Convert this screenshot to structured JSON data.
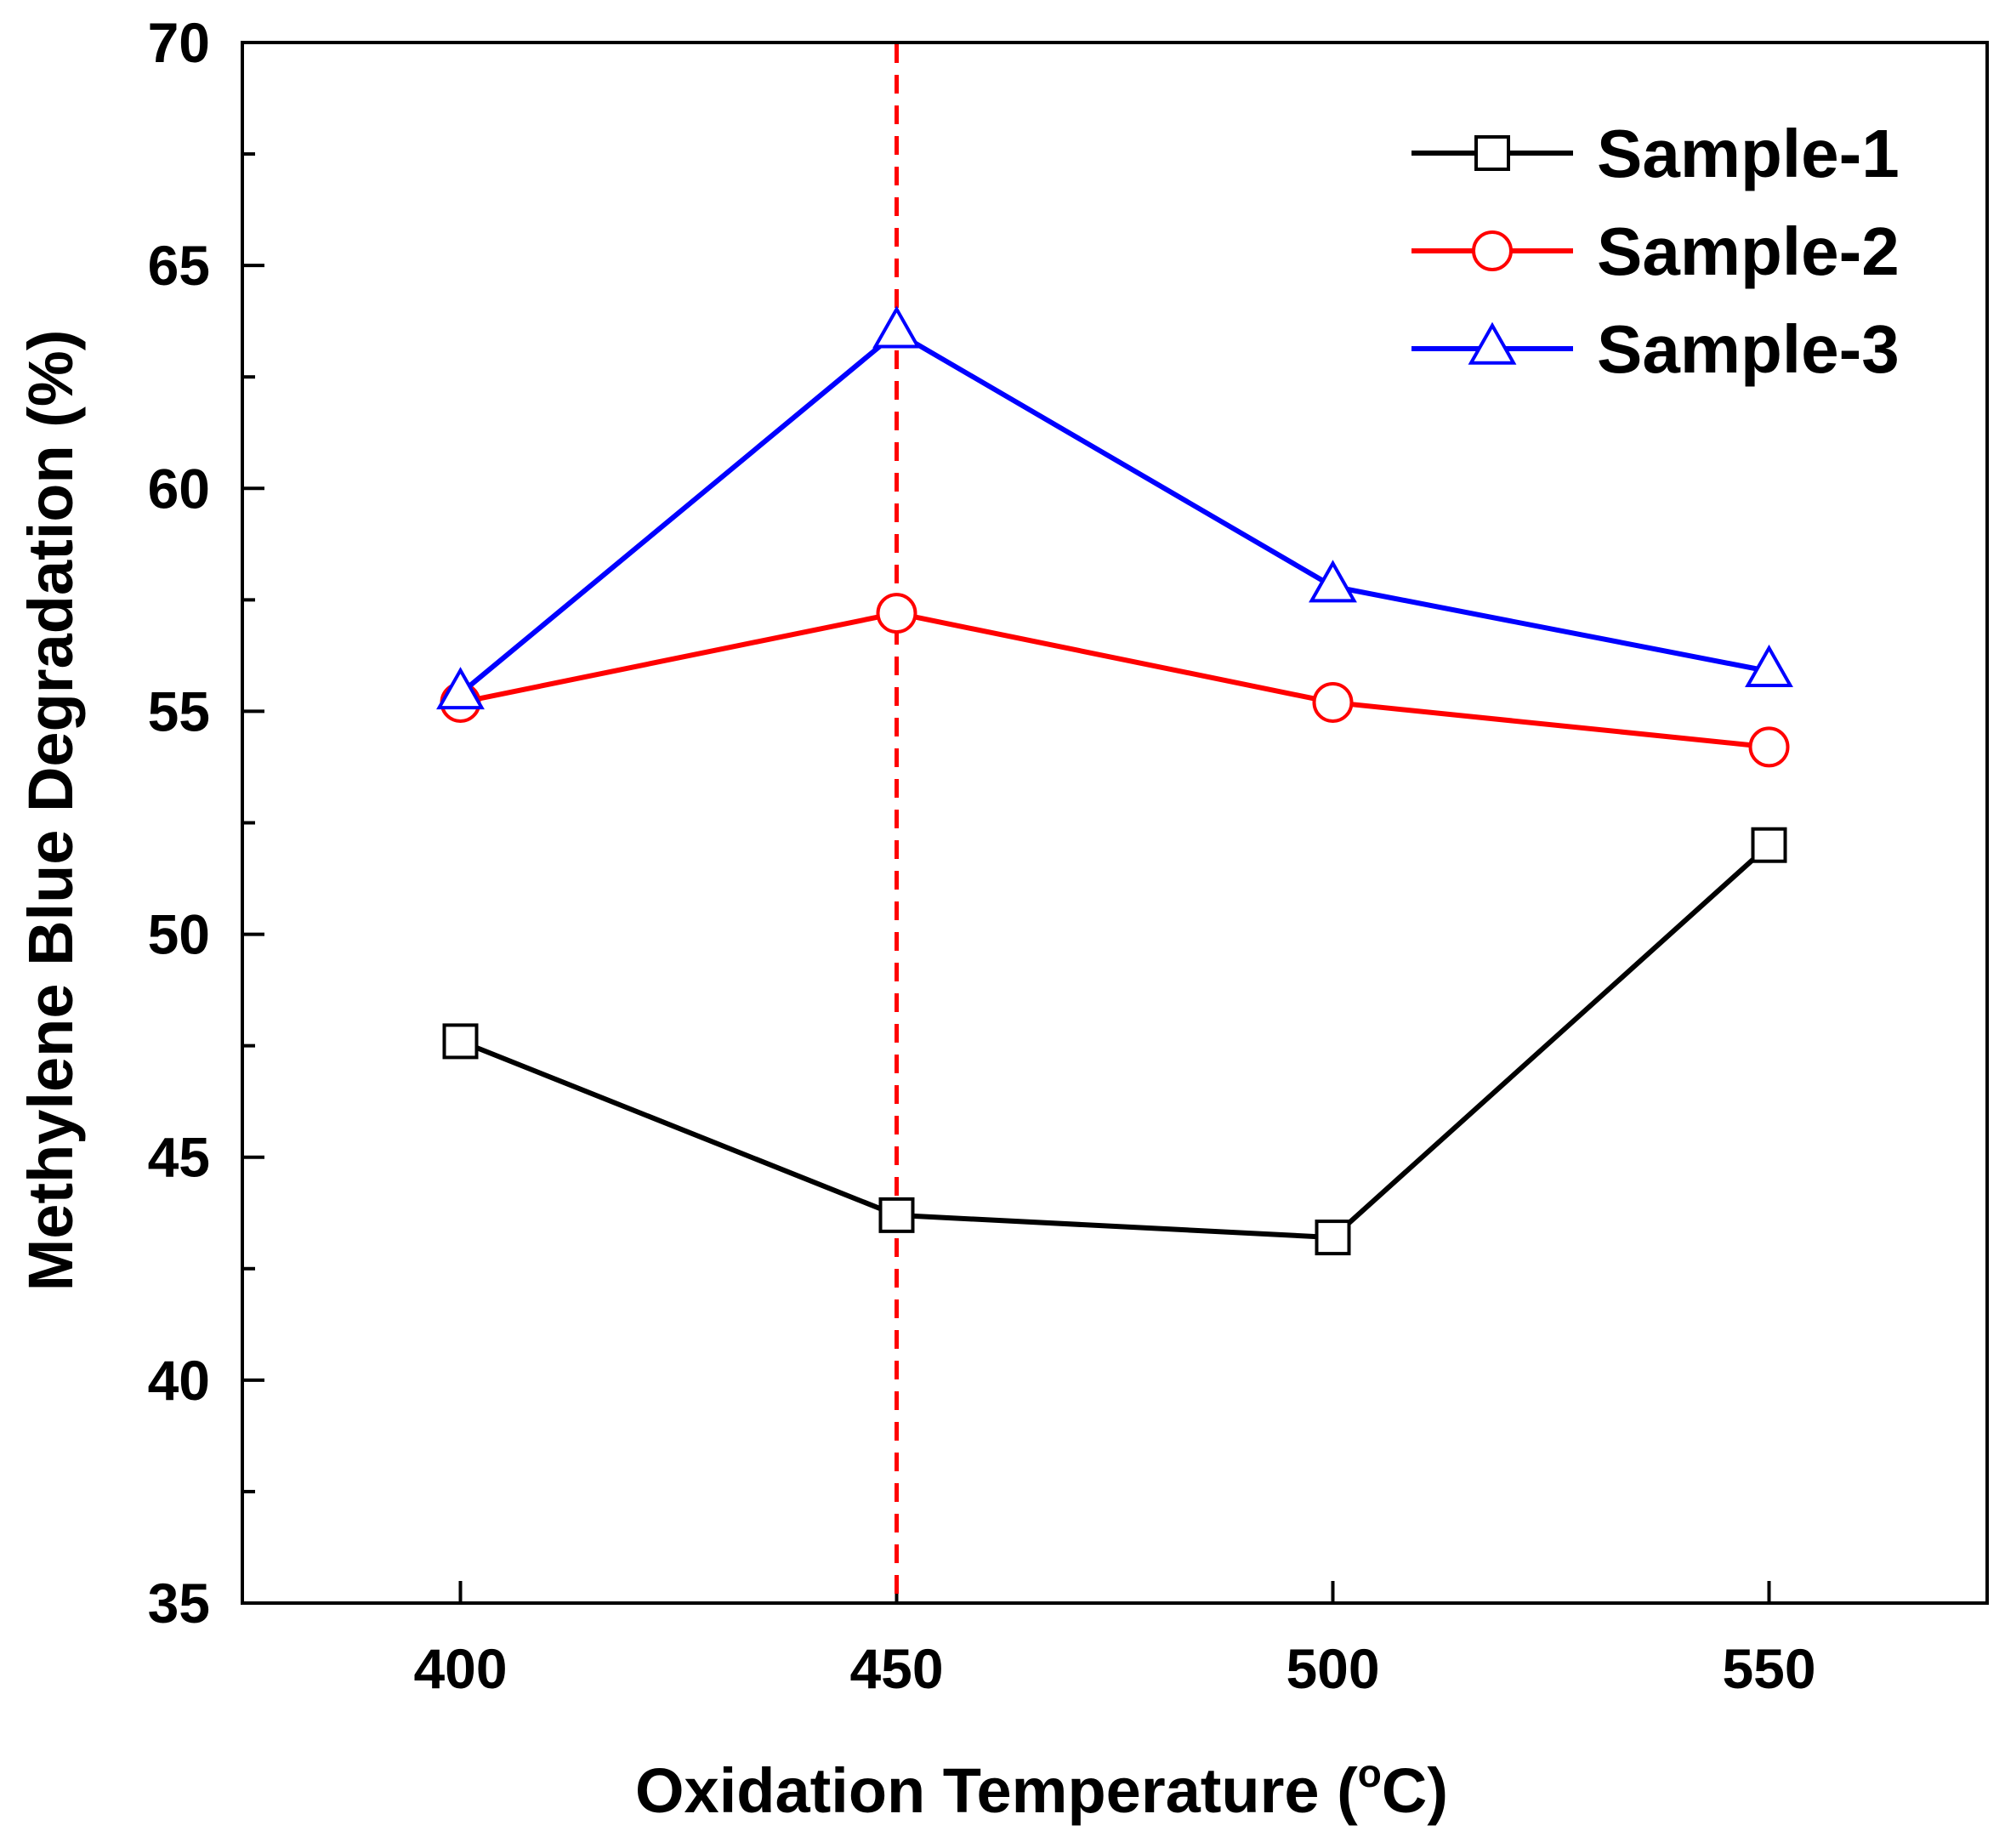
{
  "chart_data": {
    "type": "line",
    "title": "",
    "xlabel": "Oxidation Temperature (",
    "xlabel_degree": "o",
    "xlabel_unit": "C)",
    "ylabel": "Methylene Blue Degradation (%)",
    "x": [
      400,
      450,
      500,
      550
    ],
    "xlim": [
      375,
      575
    ],
    "ylim": [
      35,
      70
    ],
    "x_ticks": [
      "400",
      "450",
      "500",
      "550"
    ],
    "y_ticks": [
      "35",
      "40",
      "45",
      "50",
      "55",
      "60",
      "65",
      "70"
    ],
    "reference_line": {
      "x": 450,
      "style": "dashed",
      "color": "#ff0000"
    },
    "grid": false,
    "legend_position": "top-right",
    "series": [
      {
        "name": "Sample-1",
        "values": [
          47.6,
          43.7,
          43.2,
          52.0
        ],
        "color": "#000000",
        "marker": "square"
      },
      {
        "name": "Sample-2",
        "values": [
          55.2,
          57.2,
          55.2,
          54.2
        ],
        "color": "#ff0000",
        "marker": "circle"
      },
      {
        "name": "Sample-3",
        "values": [
          55.4,
          63.5,
          57.8,
          55.9
        ],
        "color": "#0000ff",
        "marker": "triangle"
      }
    ]
  }
}
